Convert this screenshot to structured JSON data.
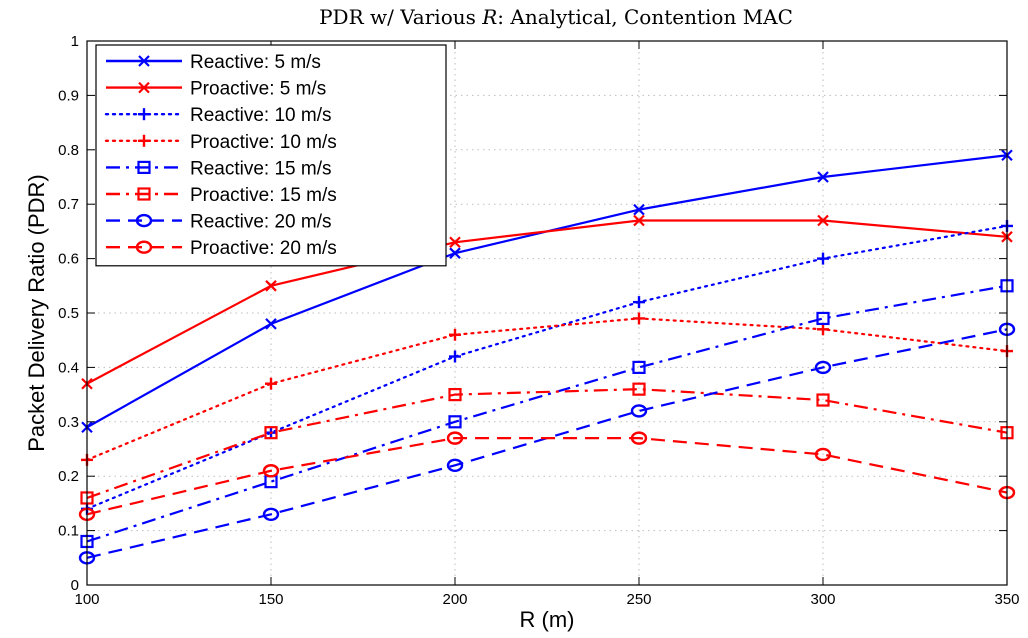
{
  "chart_data": {
    "type": "line",
    "title_prefix": "PDR w/ Various ",
    "title_var": "R",
    "title_suffix": ": Analytical, Contention MAC",
    "xlabel": "R (m)",
    "ylabel": "Packet Delivery Ratio (PDR)",
    "xlim": [
      100,
      350
    ],
    "ylim": [
      0,
      1
    ],
    "xticks": [
      100,
      150,
      200,
      250,
      300,
      350
    ],
    "yticks": [
      0,
      0.1,
      0.2,
      0.3,
      0.4,
      0.5,
      0.6,
      0.7,
      0.8,
      0.9,
      1
    ],
    "grid": true,
    "legend_position": "top-left",
    "x": [
      100,
      150,
      200,
      250,
      300,
      350
    ],
    "series": [
      {
        "name": "Reactive: 5 m/s",
        "color": "#0000ff",
        "style": "solid",
        "marker": "x",
        "values": [
          0.29,
          0.48,
          0.61,
          0.69,
          0.75,
          0.79
        ]
      },
      {
        "name": "Proactive: 5 m/s",
        "color": "#ff0000",
        "style": "solid",
        "marker": "x",
        "values": [
          0.37,
          0.55,
          0.63,
          0.67,
          0.67,
          0.64
        ]
      },
      {
        "name": "Reactive: 10 m/s",
        "color": "#0000ff",
        "style": "dotted",
        "marker": "plus",
        "values": [
          0.14,
          0.28,
          0.42,
          0.52,
          0.6,
          0.66
        ]
      },
      {
        "name": "Proactive: 10 m/s",
        "color": "#ff0000",
        "style": "dotted",
        "marker": "plus",
        "values": [
          0.23,
          0.37,
          0.46,
          0.49,
          0.47,
          0.43
        ]
      },
      {
        "name": "Reactive: 15 m/s",
        "color": "#0000ff",
        "style": "dashdot",
        "marker": "square",
        "values": [
          0.08,
          0.19,
          0.3,
          0.4,
          0.49,
          0.55
        ]
      },
      {
        "name": "Proactive: 15 m/s",
        "color": "#ff0000",
        "style": "dashdot",
        "marker": "square",
        "values": [
          0.16,
          0.28,
          0.35,
          0.36,
          0.34,
          0.28
        ]
      },
      {
        "name": "Reactive: 20 m/s",
        "color": "#0000ff",
        "style": "dashed",
        "marker": "circle",
        "values": [
          0.05,
          0.13,
          0.22,
          0.32,
          0.4,
          0.47
        ]
      },
      {
        "name": "Proactive: 20 m/s",
        "color": "#ff0000",
        "style": "dashed",
        "marker": "circle",
        "values": [
          0.13,
          0.21,
          0.27,
          0.27,
          0.24,
          0.17
        ]
      }
    ]
  }
}
